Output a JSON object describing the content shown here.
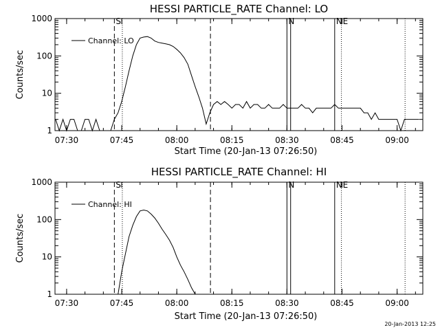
{
  "chart_data": [
    {
      "type": "line",
      "title": "HESSI PARTICLE_RATE Channel: LO",
      "xlabel": "Start Time (20-Jan-13 07:26:50)",
      "ylabel": "Counts/sec",
      "yscale": "log",
      "ylim": [
        1,
        1000
      ],
      "xlim": [
        "07:26:50",
        "09:07:00"
      ],
      "x_ticks": [
        "07:30",
        "07:45",
        "08:00",
        "08:15",
        "08:30",
        "08:45",
        "09:00"
      ],
      "y_ticks": [
        "1",
        "10",
        "100",
        "1000"
      ],
      "legend": "Channel: LO",
      "series": [
        {
          "name": "Channel: LO",
          "x": [
            "07:27",
            "07:28",
            "07:29",
            "07:30",
            "07:31",
            "07:32",
            "07:33",
            "07:34",
            "07:35",
            "07:36",
            "07:37",
            "07:38",
            "07:39",
            "07:40",
            "07:41",
            "07:42",
            "07:43",
            "07:44",
            "07:45",
            "07:46",
            "07:47",
            "07:48",
            "07:49",
            "07:50",
            "07:51",
            "07:52",
            "07:53",
            "07:54",
            "07:55",
            "07:56",
            "07:57",
            "07:58",
            "07:59",
            "08:00",
            "08:01",
            "08:02",
            "08:03",
            "08:04",
            "08:05",
            "08:06",
            "08:07",
            "08:08",
            "08:09",
            "08:10",
            "08:11",
            "08:12",
            "08:13",
            "08:14",
            "08:15",
            "08:16",
            "08:17",
            "08:18",
            "08:19",
            "08:20",
            "08:21",
            "08:22",
            "08:23",
            "08:24",
            "08:25",
            "08:26",
            "08:27",
            "08:28",
            "08:29",
            "08:30",
            "08:31",
            "08:32",
            "08:33",
            "08:34",
            "08:35",
            "08:36",
            "08:37",
            "08:38",
            "08:39",
            "08:40",
            "08:41",
            "08:42",
            "08:43",
            "08:44",
            "08:45",
            "08:46",
            "08:47",
            "08:48",
            "08:49",
            "08:50",
            "08:51",
            "08:52",
            "08:53",
            "08:54",
            "08:55",
            "08:56",
            "08:57",
            "08:58",
            "08:59",
            "09:00",
            "09:01",
            "09:02",
            "09:03",
            "09:04",
            "09:05",
            "09:06"
          ],
          "values": [
            2,
            1,
            2,
            1,
            2,
            2,
            1,
            1,
            2,
            2,
            1,
            2,
            1,
            1,
            1,
            1,
            2,
            3,
            6,
            15,
            40,
            100,
            200,
            300,
            320,
            330,
            300,
            250,
            230,
            220,
            210,
            200,
            180,
            150,
            120,
            90,
            60,
            30,
            15,
            8,
            4,
            1.5,
            3,
            5,
            6,
            5,
            6,
            5,
            4,
            5,
            5,
            4,
            6,
            4,
            5,
            5,
            4,
            4,
            5,
            4,
            4,
            4,
            5,
            4,
            4,
            4,
            4,
            5,
            4,
            4,
            3,
            4,
            4,
            4,
            4,
            4,
            5,
            4,
            4,
            4,
            4,
            4,
            4,
            4,
            3,
            3,
            2,
            3,
            2,
            2,
            2,
            2,
            2,
            2,
            1,
            2,
            2,
            2,
            2,
            2
          ],
          "color": "#000000"
        }
      ],
      "annotations": [
        {
          "label": "S",
          "time": "07:43:00",
          "style": "dashed"
        },
        {
          "label": "",
          "time": "07:45:10",
          "style": "dotted"
        },
        {
          "label": "",
          "time": "08:09:10",
          "style": "dashed"
        },
        {
          "label": "N",
          "time": "08:30:00",
          "style": "solid"
        },
        {
          "label": "",
          "time": "08:31:00",
          "style": "solid"
        },
        {
          "label": "N",
          "time": "08:43:00",
          "style": "solid"
        },
        {
          "label": "E",
          "time": "08:44:50",
          "style": "dotted"
        },
        {
          "label": "",
          "time": "09:02:10",
          "style": "dotted"
        }
      ]
    },
    {
      "type": "line",
      "title": "HESSI PARTICLE_RATE Channel: HI",
      "xlabel": "Start Time (20-Jan-13 07:26:50)",
      "ylabel": "Counts/sec",
      "yscale": "log",
      "ylim": [
        1,
        1000
      ],
      "xlim": [
        "07:26:50",
        "09:07:00"
      ],
      "x_ticks": [
        "07:30",
        "07:45",
        "08:00",
        "08:15",
        "08:30",
        "08:45",
        "09:00"
      ],
      "y_ticks": [
        "1",
        "10",
        "100",
        "1000"
      ],
      "legend": "Channel: HI",
      "series": [
        {
          "name": "Channel: HI",
          "x": [
            "07:44",
            "07:45",
            "07:46",
            "07:47",
            "07:48",
            "07:49",
            "07:50",
            "07:51",
            "07:52",
            "07:53",
            "07:54",
            "07:55",
            "07:56",
            "07:57",
            "07:58",
            "07:59",
            "08:00",
            "08:01",
            "08:02",
            "08:03",
            "08:04",
            "08:05"
          ],
          "values": [
            1,
            4,
            12,
            35,
            70,
            120,
            170,
            180,
            170,
            140,
            110,
            80,
            55,
            40,
            28,
            18,
            10,
            6,
            4,
            2.5,
            1.5,
            1
          ],
          "color": "#000000"
        }
      ],
      "annotations": [
        {
          "label": "S",
          "time": "07:43:00",
          "style": "dashed"
        },
        {
          "label": "",
          "time": "07:45:10",
          "style": "dotted"
        },
        {
          "label": "",
          "time": "08:09:10",
          "style": "dashed"
        },
        {
          "label": "N",
          "time": "08:30:00",
          "style": "solid"
        },
        {
          "label": "",
          "time": "08:31:00",
          "style": "solid"
        },
        {
          "label": "N",
          "time": "08:43:00",
          "style": "solid"
        },
        {
          "label": "E",
          "time": "08:44:50",
          "style": "dotted"
        },
        {
          "label": "",
          "time": "09:02:10",
          "style": "dotted"
        }
      ]
    }
  ],
  "footer": {
    "datestamp": "20-Jan-2013 12:25"
  }
}
